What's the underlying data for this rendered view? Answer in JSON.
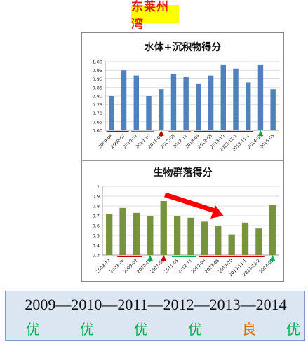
{
  "page_title": "东莱州湾",
  "colors": {
    "blue_bar": "#4f81bd",
    "green_bar": "#77933c",
    "red_line": "#c00000",
    "green_line": "#00b050",
    "arrow": "#ff0000",
    "good": "#00b050",
    "medium": "#e36c09"
  },
  "chart_data": [
    {
      "type": "bar",
      "title": "水体+沉积物得分",
      "categories": [
        "2009-06",
        "2009-07",
        "2010-07",
        "2010-10",
        "2011-08",
        "2012-05",
        "2012-11",
        "2013-04",
        "2013-05",
        "2013-10",
        "2013-11-1",
        "2013-11-2",
        "2014-05",
        "2016-05"
      ],
      "values": [
        0.8,
        0.95,
        0.92,
        0.8,
        0.84,
        0.93,
        0.91,
        0.87,
        0.92,
        0.98,
        0.96,
        0.88,
        0.98,
        0.84
      ],
      "ylim": [
        0.6,
        1.0
      ],
      "yticks": [
        "0.60",
        "0.65",
        "0.70",
        "0.75",
        "0.80",
        "0.85",
        "0.90",
        "0.95",
        "1.00"
      ],
      "grid": true
    },
    {
      "type": "bar",
      "title": "生物群落得分",
      "categories": [
        "2008-12",
        "2009-06",
        "2009-07",
        "2010-10",
        "2011-08",
        "2011-05",
        "2012-11",
        "2013-04",
        "2013-05",
        "2013-10",
        "2013-11-1",
        "2013-11-2",
        "2014-05"
      ],
      "values": [
        0.72,
        0.78,
        0.73,
        0.7,
        0.85,
        0.7,
        0.68,
        0.64,
        0.6,
        0.51,
        0.63,
        0.57,
        0.81
      ],
      "ylim": [
        0.3,
        1.0
      ],
      "yticks": [
        "0.3",
        "0.4",
        "0.5",
        "0.6",
        "0.7",
        "0.8",
        "0.9",
        "1"
      ],
      "grid": true
    }
  ],
  "timeline": {
    "years_text": "2009—2010—2011—2012—2013—2014",
    "grades": [
      {
        "label": "优",
        "color": "#00b050"
      },
      {
        "label": "优",
        "color": "#00b050"
      },
      {
        "label": "优",
        "color": "#00b050"
      },
      {
        "label": "优",
        "color": "#00b050"
      },
      {
        "label": "良",
        "color": "#e36c09"
      },
      {
        "label": "优",
        "color": "#00b050"
      }
    ]
  }
}
